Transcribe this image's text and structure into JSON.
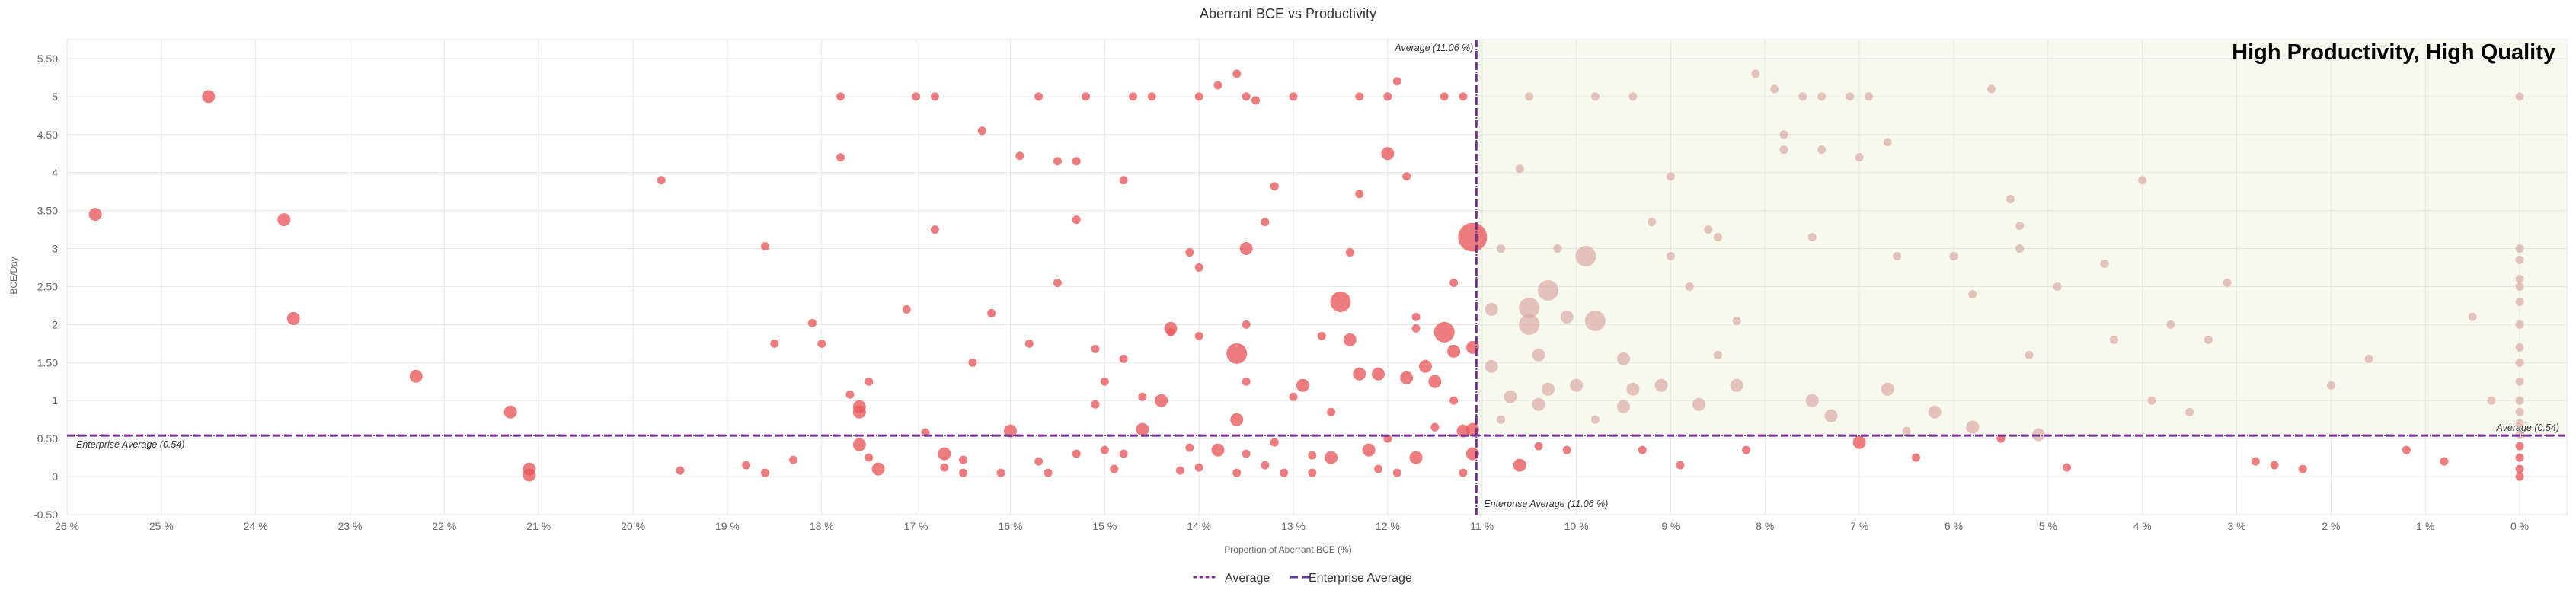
{
  "colors": {
    "red": "#e8575a",
    "pale": "#d9a5a0",
    "quadrant_fill": "#f7f8ee",
    "avg_line": "#7b2d8b",
    "enterprise_line": "#5b3a9a",
    "grid": "#e6e6e6"
  },
  "chart_data": {
    "type": "scatter",
    "title": "Aberrant BCE vs Productivity",
    "xlabel": "Proportion of Aberrant BCE (%)",
    "ylabel": "BCE/Day",
    "x_reversed": true,
    "xlim": [
      26.0,
      -0.5
    ],
    "ylim": [
      -0.5,
      5.75
    ],
    "x_ticks": [
      26,
      25,
      24,
      23,
      22,
      21,
      20,
      19,
      18,
      17,
      16,
      15,
      14,
      13,
      12,
      11,
      10,
      9,
      8,
      7,
      6,
      5,
      4,
      3,
      2,
      1,
      0
    ],
    "x_tick_labels": [
      "26 %",
      "25 %",
      "24 %",
      "23 %",
      "22 %",
      "21 %",
      "20 %",
      "19 %",
      "18 %",
      "17 %",
      "16 %",
      "15 %",
      "14 %",
      "13 %",
      "12 %",
      "11 %",
      "10 %",
      "9 %",
      "8 %",
      "7 %",
      "6 %",
      "5 %",
      "4 %",
      "3 %",
      "2 %",
      "1 %",
      "0 %"
    ],
    "y_ticks": [
      -0.5,
      0,
      0.5,
      1,
      1.5,
      2,
      2.5,
      3,
      3.5,
      4,
      4.5,
      5,
      5.5
    ],
    "y_tick_labels": [
      "-0.50",
      "0",
      "0.50",
      "1",
      "1.50",
      "2",
      "2.50",
      "3",
      "3.50",
      "4",
      "4.50",
      "5",
      "5.50"
    ],
    "average_x": 11.06,
    "enterprise_average_y": 0.54,
    "annotations": {
      "average_x_label": "Average (11.06 %)",
      "enterprise_x_label": "Enterprise Average (11.06 %)",
      "enterprise_y_label_left": "Enterprise Average (0.54)",
      "average_y_label_right": "Average (0.54)",
      "quadrant_label": "High Productivity, High Quality"
    },
    "legend": [
      {
        "label": "Average",
        "style": "dotted"
      },
      {
        "label": "Enterprise Average",
        "style": "dashed"
      }
    ],
    "points": [
      [
        25.7,
        3.45,
        1
      ],
      [
        24.5,
        5.0,
        1
      ],
      [
        23.7,
        3.38,
        1
      ],
      [
        23.6,
        2.08,
        1
      ],
      [
        22.3,
        1.32,
        1
      ],
      [
        21.3,
        0.85,
        1
      ],
      [
        21.1,
        0.1,
        1
      ],
      [
        21.1,
        0.02,
        1
      ],
      [
        19.7,
        3.9,
        0
      ],
      [
        19.5,
        0.08,
        0
      ],
      [
        18.8,
        0.15,
        0
      ],
      [
        18.6,
        3.03,
        0
      ],
      [
        18.6,
        0.05,
        0
      ],
      [
        18.5,
        1.75,
        0
      ],
      [
        18.3,
        0.22,
        0
      ],
      [
        18.1,
        2.02,
        0
      ],
      [
        18.0,
        1.75,
        0
      ],
      [
        17.8,
        5.0,
        0
      ],
      [
        17.8,
        4.2,
        0
      ],
      [
        17.7,
        1.08,
        0
      ],
      [
        17.6,
        0.92,
        1
      ],
      [
        17.6,
        0.85,
        1
      ],
      [
        17.5,
        1.25,
        0
      ],
      [
        17.6,
        0.42,
        1
      ],
      [
        17.5,
        0.25,
        0
      ],
      [
        17.4,
        0.1,
        1
      ],
      [
        17.1,
        2.2,
        0
      ],
      [
        16.9,
        0.58,
        0
      ],
      [
        16.8,
        3.25,
        0
      ],
      [
        17.0,
        5.0,
        0
      ],
      [
        16.8,
        5.0,
        0
      ],
      [
        16.7,
        0.3,
        1
      ],
      [
        16.7,
        0.12,
        0
      ],
      [
        16.5,
        0.05,
        0
      ],
      [
        16.5,
        0.22,
        0
      ],
      [
        16.4,
        1.5,
        0
      ],
      [
        16.3,
        4.55,
        0
      ],
      [
        16.2,
        2.15,
        0
      ],
      [
        16.1,
        0.05,
        0
      ],
      [
        16.0,
        0.6,
        1
      ],
      [
        15.9,
        4.22,
        0
      ],
      [
        15.8,
        1.75,
        0
      ],
      [
        15.7,
        0.2,
        0
      ],
      [
        15.7,
        5.0,
        0
      ],
      [
        15.6,
        0.05,
        0
      ],
      [
        15.5,
        4.15,
        0
      ],
      [
        15.5,
        2.55,
        0
      ],
      [
        15.3,
        4.15,
        0
      ],
      [
        15.3,
        3.38,
        0
      ],
      [
        15.3,
        0.3,
        0
      ],
      [
        15.2,
        5.0,
        0
      ],
      [
        15.1,
        1.68,
        0
      ],
      [
        15.1,
        0.95,
        0
      ],
      [
        15.0,
        1.25,
        0
      ],
      [
        15.0,
        0.35,
        0
      ],
      [
        14.9,
        0.1,
        0
      ],
      [
        14.8,
        1.55,
        0
      ],
      [
        14.8,
        0.3,
        0
      ],
      [
        14.8,
        3.9,
        0
      ],
      [
        14.7,
        5.0,
        0
      ],
      [
        14.6,
        1.05,
        0
      ],
      [
        14.6,
        0.62,
        1
      ],
      [
        14.5,
        5.0,
        0
      ],
      [
        14.4,
        1.0,
        1
      ],
      [
        14.3,
        1.9,
        0
      ],
      [
        14.3,
        1.95,
        1
      ],
      [
        14.2,
        0.08,
        0
      ],
      [
        14.1,
        0.38,
        0
      ],
      [
        14.1,
        2.95,
        0
      ],
      [
        14.0,
        2.75,
        0
      ],
      [
        14.0,
        1.85,
        0
      ],
      [
        14.0,
        0.12,
        0
      ],
      [
        14.0,
        5.0,
        0
      ],
      [
        13.8,
        0.35,
        1
      ],
      [
        13.8,
        5.15,
        0
      ],
      [
        13.6,
        5.3,
        0
      ],
      [
        13.6,
        1.62,
        2
      ],
      [
        13.6,
        0.75,
        1
      ],
      [
        13.6,
        0.05,
        0
      ],
      [
        13.5,
        3.0,
        1
      ],
      [
        13.5,
        2.0,
        0
      ],
      [
        13.5,
        1.25,
        0
      ],
      [
        13.5,
        0.3,
        0
      ],
      [
        13.5,
        5.0,
        0
      ],
      [
        13.4,
        4.95,
        0
      ],
      [
        13.3,
        0.15,
        0
      ],
      [
        13.3,
        3.35,
        0
      ],
      [
        13.2,
        3.82,
        0
      ],
      [
        13.2,
        0.45,
        0
      ],
      [
        13.1,
        0.05,
        0
      ],
      [
        13.0,
        5.0,
        0
      ],
      [
        13.0,
        1.05,
        0
      ],
      [
        12.9,
        1.2,
        1
      ],
      [
        12.8,
        0.28,
        0
      ],
      [
        12.8,
        0.05,
        0
      ],
      [
        12.7,
        1.85,
        0
      ],
      [
        12.6,
        0.85,
        0
      ],
      [
        12.6,
        0.25,
        1
      ],
      [
        12.5,
        2.3,
        2
      ],
      [
        12.4,
        2.95,
        0
      ],
      [
        12.4,
        1.8,
        1
      ],
      [
        12.3,
        1.35,
        1
      ],
      [
        12.3,
        3.72,
        0
      ],
      [
        12.3,
        5.0,
        0
      ],
      [
        12.2,
        0.35,
        1
      ],
      [
        12.1,
        1.35,
        1
      ],
      [
        12.1,
        0.1,
        0
      ],
      [
        12.0,
        5.0,
        0
      ],
      [
        12.0,
        4.25,
        1
      ],
      [
        12.0,
        0.5,
        0
      ],
      [
        11.9,
        5.2,
        0
      ],
      [
        11.9,
        0.05,
        0
      ],
      [
        11.8,
        1.3,
        1
      ],
      [
        11.8,
        3.95,
        0
      ],
      [
        11.7,
        0.25,
        1
      ],
      [
        11.7,
        1.95,
        0
      ],
      [
        11.7,
        2.1,
        0
      ],
      [
        11.6,
        1.45,
        1
      ],
      [
        11.5,
        1.25,
        1
      ],
      [
        11.5,
        0.65,
        0
      ],
      [
        11.4,
        1.9,
        2
      ],
      [
        11.4,
        5.0,
        0
      ],
      [
        11.3,
        2.55,
        0
      ],
      [
        11.3,
        1.65,
        1
      ],
      [
        11.3,
        1.0,
        0
      ],
      [
        11.2,
        5.0,
        0
      ],
      [
        11.2,
        0.6,
        1
      ],
      [
        11.2,
        0.05,
        0
      ],
      [
        11.1,
        3.15,
        3
      ],
      [
        11.1,
        1.7,
        1
      ],
      [
        11.1,
        0.3,
        1
      ],
      [
        11.1,
        0.62,
        1
      ],
      [
        10.9,
        2.2,
        1
      ],
      [
        10.9,
        1.45,
        1
      ],
      [
        10.8,
        3.0,
        0
      ],
      [
        10.8,
        0.75,
        0
      ],
      [
        10.7,
        1.05,
        1
      ],
      [
        10.6,
        0.15,
        1
      ],
      [
        10.6,
        4.05,
        0
      ],
      [
        10.5,
        5.0,
        0
      ],
      [
        10.5,
        2.22,
        2
      ],
      [
        10.5,
        2.0,
        2
      ],
      [
        10.4,
        1.6,
        1
      ],
      [
        10.4,
        0.95,
        1
      ],
      [
        10.4,
        0.4,
        0
      ],
      [
        10.3,
        2.45,
        2
      ],
      [
        10.3,
        1.15,
        1
      ],
      [
        10.2,
        3.0,
        0
      ],
      [
        10.1,
        2.1,
        1
      ],
      [
        10.1,
        0.35,
        0
      ],
      [
        10.0,
        1.2,
        1
      ],
      [
        9.9,
        2.9,
        2
      ],
      [
        9.8,
        2.05,
        2
      ],
      [
        9.8,
        0.75,
        0
      ],
      [
        9.8,
        5.0,
        0
      ],
      [
        9.5,
        1.55,
        1
      ],
      [
        9.5,
        0.92,
        1
      ],
      [
        9.4,
        1.15,
        1
      ],
      [
        9.4,
        5.0,
        0
      ],
      [
        9.3,
        0.35,
        0
      ],
      [
        9.2,
        3.35,
        0
      ],
      [
        9.1,
        1.2,
        1
      ],
      [
        9.0,
        3.95,
        0
      ],
      [
        9.0,
        2.9,
        0
      ],
      [
        8.9,
        0.15,
        0
      ],
      [
        8.8,
        2.5,
        0
      ],
      [
        8.7,
        0.95,
        1
      ],
      [
        8.6,
        3.25,
        0
      ],
      [
        8.5,
        3.15,
        0
      ],
      [
        8.5,
        1.6,
        0
      ],
      [
        8.3,
        2.05,
        0
      ],
      [
        8.3,
        1.2,
        1
      ],
      [
        8.2,
        0.35,
        0
      ],
      [
        8.1,
        5.3,
        0
      ],
      [
        7.9,
        5.1,
        0
      ],
      [
        7.8,
        4.5,
        0
      ],
      [
        7.8,
        4.3,
        0
      ],
      [
        7.6,
        5.0,
        0
      ],
      [
        7.5,
        3.15,
        0
      ],
      [
        7.5,
        1.0,
        1
      ],
      [
        7.4,
        5.0,
        0
      ],
      [
        7.4,
        4.3,
        0
      ],
      [
        7.3,
        0.8,
        1
      ],
      [
        7.1,
        5.0,
        0
      ],
      [
        7.0,
        4.2,
        0
      ],
      [
        7.0,
        0.45,
        1
      ],
      [
        6.9,
        5.0,
        0
      ],
      [
        6.7,
        4.4,
        0
      ],
      [
        6.7,
        1.15,
        1
      ],
      [
        6.6,
        2.9,
        0
      ],
      [
        6.5,
        0.6,
        0
      ],
      [
        6.4,
        0.25,
        0
      ],
      [
        6.2,
        0.85,
        1
      ],
      [
        6.0,
        2.9,
        0
      ],
      [
        5.8,
        2.4,
        0
      ],
      [
        5.8,
        0.65,
        1
      ],
      [
        5.6,
        5.1,
        0
      ],
      [
        5.5,
        0.5,
        0
      ],
      [
        5.4,
        3.65,
        0
      ],
      [
        5.3,
        3.0,
        0
      ],
      [
        5.3,
        3.3,
        0
      ],
      [
        5.2,
        1.6,
        0
      ],
      [
        5.1,
        0.55,
        1
      ],
      [
        4.9,
        2.5,
        0
      ],
      [
        4.8,
        0.12,
        0
      ],
      [
        4.4,
        2.8,
        0
      ],
      [
        4.3,
        1.8,
        0
      ],
      [
        4.0,
        3.9,
        0
      ],
      [
        3.9,
        1.0,
        0
      ],
      [
        3.7,
        2.0,
        0
      ],
      [
        3.5,
        0.85,
        0
      ],
      [
        3.3,
        1.8,
        0
      ],
      [
        3.1,
        2.55,
        0
      ],
      [
        2.8,
        0.2,
        0
      ],
      [
        2.6,
        0.15,
        0
      ],
      [
        2.3,
        0.1,
        0
      ],
      [
        2.0,
        1.2,
        0
      ],
      [
        1.6,
        1.55,
        0
      ],
      [
        1.2,
        0.35,
        0
      ],
      [
        0.8,
        0.2,
        0
      ],
      [
        0.5,
        2.1,
        0
      ],
      [
        0.3,
        1.0,
        0
      ],
      [
        0.0,
        5.0,
        0
      ],
      [
        0.0,
        3.0,
        0
      ],
      [
        0.0,
        2.85,
        0
      ],
      [
        0.0,
        2.6,
        0
      ],
      [
        0.0,
        2.5,
        0
      ],
      [
        0.0,
        2.3,
        0
      ],
      [
        0.0,
        2.0,
        0
      ],
      [
        0.0,
        1.7,
        0
      ],
      [
        0.0,
        1.5,
        0
      ],
      [
        0.0,
        1.25,
        0
      ],
      [
        0.0,
        1.0,
        0
      ],
      [
        0.0,
        0.85,
        0
      ],
      [
        0.0,
        0.7,
        0
      ],
      [
        0.0,
        0.55,
        0
      ],
      [
        0.0,
        0.4,
        0
      ],
      [
        0.0,
        0.25,
        0
      ],
      [
        0.0,
        0.1,
        0
      ],
      [
        0.0,
        0.0,
        0
      ]
    ]
  }
}
